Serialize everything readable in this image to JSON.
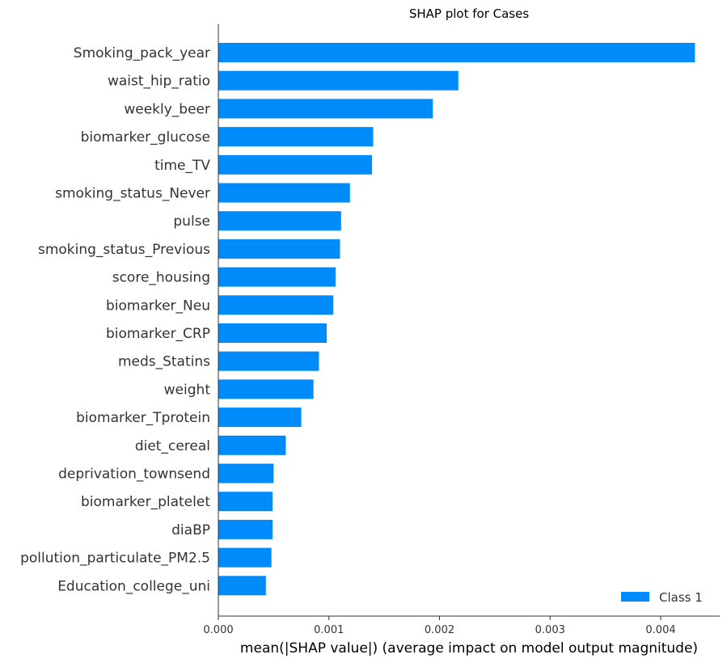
{
  "chart_data": {
    "type": "bar",
    "orientation": "horizontal",
    "title": "SHAP plot for Cases",
    "xlabel": "mean(|SHAP value|) (average impact on model output magnitude)",
    "ylabel": "",
    "xlim": [
      0,
      0.0045
    ],
    "xticks": [
      0,
      0.001,
      0.002,
      0.003,
      0.004
    ],
    "xtick_labels": [
      "0.000",
      "0.001",
      "0.002",
      "0.003",
      "0.004"
    ],
    "categories": [
      "Smoking_pack_year",
      "waist_hip_ratio",
      "weekly_beer",
      "biomarker_glucose",
      "time_TV",
      "smoking_status_Never",
      "pulse",
      "smoking_status_Previous",
      "score_housing",
      "biomarker_Neu",
      "biomarker_CRP",
      "meds_Statins",
      "weight",
      "biomarker_Tprotein",
      "diet_cereal",
      "deprivation_townsend",
      "biomarker_platelet",
      "diaBP",
      "pollution_particulate_PM2.5",
      "Education_college_uni"
    ],
    "series": [
      {
        "name": "Class 1",
        "color": "#008bfb",
        "values": [
          0.00431,
          0.00217,
          0.00194,
          0.0014,
          0.00139,
          0.00119,
          0.00111,
          0.0011,
          0.00106,
          0.00104,
          0.00098,
          0.00091,
          0.00086,
          0.00075,
          0.00061,
          0.0005,
          0.00049,
          0.00049,
          0.00048,
          0.00043
        ]
      }
    ],
    "legend_position": "bottom-right",
    "grid": false
  }
}
